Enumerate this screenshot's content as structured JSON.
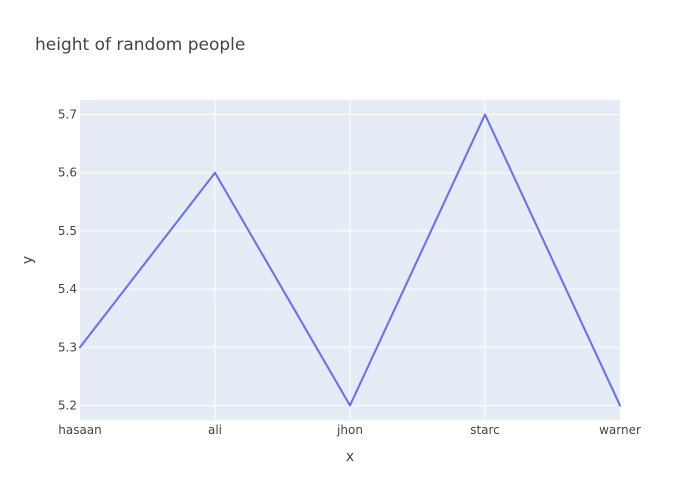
{
  "chart_data": {
    "type": "line",
    "title": "height of random people",
    "xlabel": "x",
    "ylabel": "y",
    "categories": [
      "hasaan",
      "ali",
      "jhon",
      "starc",
      "warner"
    ],
    "series": [
      {
        "values": [
          5.3,
          5.6,
          5.2,
          5.7,
          5.2
        ]
      }
    ],
    "ylim": [
      5.175,
      5.725
    ],
    "yticks": [
      5.2,
      5.3,
      5.4,
      5.5,
      5.6,
      5.7
    ],
    "ytick_labels": [
      "5.2",
      "5.3",
      "5.4",
      "5.5",
      "5.6",
      "5.7"
    ],
    "grid": true,
    "colors": {
      "line": "#636efa",
      "plot_background": "#e5ecf6",
      "grid": "#ffffff",
      "text": "#444444"
    }
  }
}
